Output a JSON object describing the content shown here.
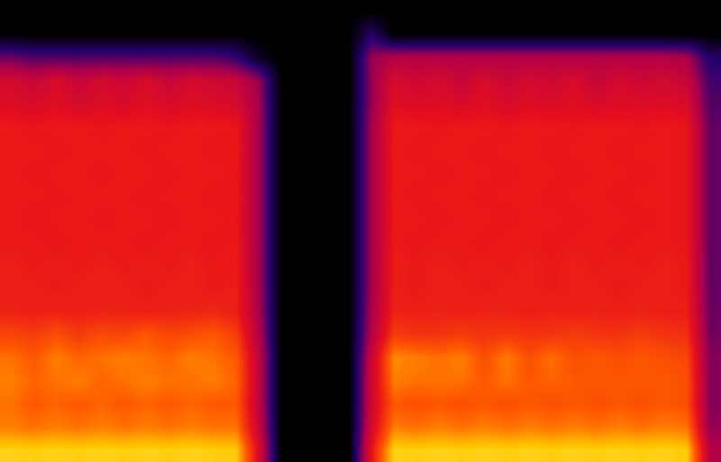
{
  "chart_data": {
    "type": "heatmap",
    "tick_labels": false,
    "value_range": [
      0,
      1
    ],
    "cells": [
      [
        0,
        0,
        0,
        0,
        0,
        0,
        0,
        0,
        0,
        0,
        0,
        0,
        0,
        0,
        0,
        0,
        0,
        0,
        0,
        0,
        0,
        0,
        0,
        0,
        0,
        0,
        0,
        0,
        0,
        0,
        0,
        0
      ],
      [
        0,
        0,
        0,
        0,
        0,
        0,
        0,
        0,
        0,
        0,
        0,
        0,
        0,
        0,
        0,
        0,
        0.15,
        0,
        0,
        0,
        0,
        0,
        0,
        0,
        0,
        0,
        0,
        0,
        0,
        0,
        0,
        0
      ],
      [
        0.25,
        0.22,
        0.22,
        0.22,
        0.22,
        0.22,
        0.22,
        0.22,
        0.22,
        0.22,
        0.18,
        0.05,
        0,
        0,
        0,
        0,
        0.3,
        0.35,
        0.35,
        0.35,
        0.35,
        0.35,
        0.35,
        0.35,
        0.35,
        0.35,
        0.35,
        0.35,
        0.35,
        0.35,
        0.33,
        0.15
      ],
      [
        0.44,
        0.4,
        0.45,
        0.4,
        0.44,
        0.41,
        0.45,
        0.4,
        0.44,
        0.42,
        0.4,
        0.3,
        0,
        0,
        0,
        0,
        0.3,
        0.45,
        0.42,
        0.44,
        0.4,
        0.45,
        0.41,
        0.44,
        0.42,
        0.45,
        0.4,
        0.44,
        0.41,
        0.43,
        0.4,
        0.2
      ],
      [
        0.47,
        0.45,
        0.48,
        0.44,
        0.47,
        0.45,
        0.48,
        0.45,
        0.47,
        0.46,
        0.44,
        0.32,
        0,
        0,
        0,
        0,
        0.3,
        0.48,
        0.46,
        0.47,
        0.45,
        0.48,
        0.45,
        0.47,
        0.46,
        0.48,
        0.45,
        0.47,
        0.46,
        0.47,
        0.45,
        0.22
      ],
      [
        0.52,
        0.51,
        0.52,
        0.52,
        0.51,
        0.52,
        0.52,
        0.51,
        0.52,
        0.52,
        0.51,
        0.32,
        0,
        0,
        0,
        0,
        0.32,
        0.52,
        0.52,
        0.51,
        0.52,
        0.52,
        0.51,
        0.52,
        0.52,
        0.51,
        0.52,
        0.52,
        0.51,
        0.52,
        0.51,
        0.24
      ],
      [
        0.52,
        0.52,
        0.51,
        0.52,
        0.52,
        0.52,
        0.51,
        0.52,
        0.52,
        0.51,
        0.52,
        0.32,
        0,
        0,
        0,
        0,
        0.32,
        0.52,
        0.51,
        0.52,
        0.52,
        0.51,
        0.52,
        0.52,
        0.51,
        0.52,
        0.52,
        0.51,
        0.52,
        0.52,
        0.51,
        0.24
      ],
      [
        0.52,
        0.51,
        0.52,
        0.52,
        0.51,
        0.52,
        0.52,
        0.51,
        0.52,
        0.52,
        0.51,
        0.32,
        0,
        0,
        0,
        0,
        0.32,
        0.52,
        0.52,
        0.51,
        0.52,
        0.52,
        0.51,
        0.52,
        0.52,
        0.51,
        0.52,
        0.52,
        0.51,
        0.52,
        0.51,
        0.24
      ],
      [
        0.52,
        0.52,
        0.51,
        0.52,
        0.52,
        0.52,
        0.51,
        0.52,
        0.52,
        0.51,
        0.52,
        0.32,
        0,
        0,
        0,
        0,
        0.32,
        0.52,
        0.51,
        0.52,
        0.52,
        0.51,
        0.52,
        0.52,
        0.51,
        0.52,
        0.52,
        0.51,
        0.52,
        0.52,
        0.51,
        0.24
      ],
      [
        0.52,
        0.51,
        0.52,
        0.52,
        0.51,
        0.52,
        0.52,
        0.51,
        0.52,
        0.52,
        0.51,
        0.32,
        0,
        0,
        0,
        0,
        0.32,
        0.52,
        0.52,
        0.51,
        0.52,
        0.52,
        0.51,
        0.52,
        0.52,
        0.51,
        0.52,
        0.52,
        0.51,
        0.52,
        0.51,
        0.24
      ],
      [
        0.52,
        0.52,
        0.51,
        0.52,
        0.52,
        0.52,
        0.51,
        0.52,
        0.52,
        0.51,
        0.52,
        0.32,
        0,
        0,
        0,
        0,
        0.32,
        0.52,
        0.51,
        0.52,
        0.52,
        0.51,
        0.52,
        0.52,
        0.51,
        0.52,
        0.52,
        0.51,
        0.52,
        0.52,
        0.51,
        0.24
      ],
      [
        0.53,
        0.52,
        0.53,
        0.52,
        0.53,
        0.52,
        0.53,
        0.52,
        0.53,
        0.52,
        0.52,
        0.32,
        0,
        0,
        0,
        0,
        0.32,
        0.53,
        0.52,
        0.53,
        0.52,
        0.53,
        0.52,
        0.53,
        0.52,
        0.53,
        0.52,
        0.53,
        0.52,
        0.53,
        0.52,
        0.24
      ],
      [
        0.53,
        0.53,
        0.52,
        0.53,
        0.53,
        0.53,
        0.52,
        0.53,
        0.53,
        0.52,
        0.53,
        0.32,
        0,
        0,
        0,
        0,
        0.32,
        0.53,
        0.52,
        0.53,
        0.53,
        0.52,
        0.53,
        0.53,
        0.52,
        0.53,
        0.53,
        0.52,
        0.53,
        0.53,
        0.52,
        0.24
      ],
      [
        0.54,
        0.53,
        0.54,
        0.53,
        0.54,
        0.54,
        0.53,
        0.54,
        0.54,
        0.55,
        0.53,
        0.33,
        0,
        0,
        0,
        0,
        0.33,
        0.54,
        0.53,
        0.54,
        0.53,
        0.54,
        0.54,
        0.53,
        0.54,
        0.53,
        0.54,
        0.53,
        0.54,
        0.53,
        0.53,
        0.25
      ],
      [
        0.62,
        0.6,
        0.64,
        0.6,
        0.63,
        0.62,
        0.66,
        0.62,
        0.64,
        0.66,
        0.6,
        0.35,
        0,
        0,
        0,
        0,
        0.35,
        0.6,
        0.58,
        0.58,
        0.6,
        0.58,
        0.59,
        0.58,
        0.58,
        0.6,
        0.58,
        0.58,
        0.6,
        0.58,
        0.57,
        0.26
      ],
      [
        0.7,
        0.66,
        0.72,
        0.68,
        0.7,
        0.72,
        0.7,
        0.68,
        0.72,
        0.7,
        0.66,
        0.38,
        0,
        0,
        0,
        0,
        0.4,
        0.74,
        0.72,
        0.7,
        0.72,
        0.64,
        0.72,
        0.64,
        0.7,
        0.64,
        0.66,
        0.64,
        0.66,
        0.64,
        0.62,
        0.28
      ],
      [
        0.72,
        0.68,
        0.7,
        0.72,
        0.68,
        0.7,
        0.72,
        0.7,
        0.7,
        0.72,
        0.68,
        0.38,
        0,
        0,
        0,
        0,
        0.42,
        0.72,
        0.7,
        0.7,
        0.7,
        0.66,
        0.7,
        0.66,
        0.68,
        0.66,
        0.66,
        0.66,
        0.66,
        0.66,
        0.64,
        0.28
      ],
      [
        0.7,
        0.66,
        0.68,
        0.66,
        0.68,
        0.66,
        0.68,
        0.66,
        0.68,
        0.66,
        0.66,
        0.38,
        0,
        0,
        0,
        0,
        0.42,
        0.66,
        0.64,
        0.66,
        0.64,
        0.66,
        0.64,
        0.66,
        0.64,
        0.66,
        0.64,
        0.66,
        0.64,
        0.66,
        0.64,
        0.28
      ],
      [
        0.72,
        0.7,
        0.72,
        0.7,
        0.72,
        0.7,
        0.72,
        0.7,
        0.72,
        0.7,
        0.7,
        0.4,
        0,
        0,
        0,
        0,
        0.44,
        0.72,
        0.7,
        0.72,
        0.7,
        0.72,
        0.7,
        0.72,
        0.7,
        0.72,
        0.7,
        0.72,
        0.7,
        0.72,
        0.7,
        0.3
      ],
      [
        0.86,
        0.85,
        0.86,
        0.85,
        0.86,
        0.85,
        0.86,
        0.85,
        0.86,
        0.85,
        0.84,
        0.45,
        0,
        0,
        0,
        0,
        0.5,
        0.86,
        0.85,
        0.86,
        0.85,
        0.86,
        0.85,
        0.86,
        0.85,
        0.86,
        0.85,
        0.86,
        0.85,
        0.86,
        0.84,
        0.35
      ]
    ]
  }
}
